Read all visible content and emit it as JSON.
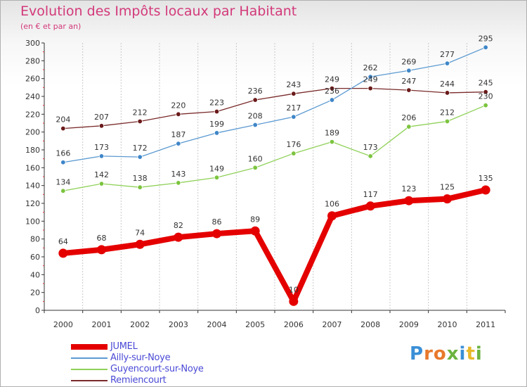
{
  "header": {
    "title": "Evolution des Impôts locaux par Habitant",
    "subtitle": "(en € et par an)"
  },
  "branding": {
    "logo_text": "Proxiti",
    "letter_colors": [
      "#3a8fd6",
      "#e8792b",
      "#e8792b",
      "#6cb33f",
      "#3a8fd6",
      "#e8b92b",
      "#6cb33f"
    ]
  },
  "legend": {
    "items": [
      {
        "label": "JUMEL",
        "color": "#e50000"
      },
      {
        "label": "Ailly-sur-Noye",
        "color": "#5c9ad1"
      },
      {
        "label": "Guyencourt-sur-Noye",
        "color": "#8fd158"
      },
      {
        "label": "Remiencourt",
        "color": "#7a2a2a"
      }
    ]
  },
  "chart_data": {
    "type": "line",
    "title": "Evolution des Impôts locaux par Habitant",
    "subtitle": "(en € et par an)",
    "xlabel": "",
    "ylabel": "",
    "categories": [
      "2000",
      "2001",
      "2002",
      "2003",
      "2004",
      "2005",
      "2006",
      "2007",
      "2008",
      "2009",
      "2010",
      "2011"
    ],
    "ylim": [
      0,
      300
    ],
    "yticks": [
      0,
      20,
      40,
      60,
      80,
      100,
      120,
      140,
      160,
      180,
      200,
      220,
      240,
      260,
      280,
      300
    ],
    "grid": "vertical",
    "series": [
      {
        "name": "Remiencourt",
        "color": "#7a2a2a",
        "point_color": "#6b1a1a",
        "values": [
          204,
          207,
          212,
          220,
          223,
          236,
          243,
          249,
          249,
          247,
          244,
          245
        ]
      },
      {
        "name": "Ailly-sur-Noye",
        "color": "#5c9ad1",
        "point_color": "#3f86c8",
        "values": [
          166,
          173,
          172,
          187,
          199,
          208,
          217,
          236,
          262,
          269,
          277,
          295
        ]
      },
      {
        "name": "Guyencourt-sur-Noye",
        "color": "#8fd158",
        "point_color": "#7cc43f",
        "values": [
          134,
          142,
          138,
          143,
          149,
          160,
          176,
          189,
          173,
          206,
          212,
          230
        ]
      },
      {
        "name": "JUMEL",
        "color": "#e50000",
        "point_color": "#e50000",
        "values": [
          64,
          68,
          74,
          82,
          86,
          89,
          10,
          106,
          117,
          123,
          125,
          135
        ],
        "bold": true
      }
    ]
  }
}
